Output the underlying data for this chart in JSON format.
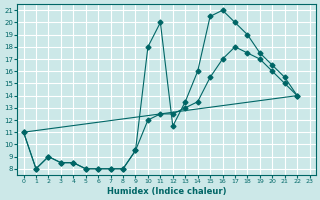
{
  "xlabel": "Humidex (Indice chaleur)",
  "bg_color": "#cce8e8",
  "grid_color": "#ffffff",
  "line_color": "#006666",
  "xlim": [
    -0.5,
    23.5
  ],
  "ylim": [
    7.5,
    21.5
  ],
  "xticks": [
    0,
    1,
    2,
    3,
    4,
    5,
    6,
    7,
    8,
    9,
    10,
    11,
    12,
    13,
    14,
    15,
    16,
    17,
    18,
    19,
    20,
    21,
    22,
    23
  ],
  "yticks": [
    8,
    9,
    10,
    11,
    12,
    13,
    14,
    15,
    16,
    17,
    18,
    19,
    20,
    21
  ],
  "line1_x": [
    0,
    1,
    2,
    3,
    4,
    5,
    6,
    7,
    8,
    9,
    10,
    11,
    12,
    13,
    14,
    15,
    16,
    17,
    18,
    19,
    20,
    21,
    22
  ],
  "line1_y": [
    11,
    8,
    9,
    8.5,
    8.5,
    8,
    8,
    8,
    8,
    9.5,
    18,
    20,
    11.5,
    13.5,
    16,
    20.5,
    21,
    20,
    19,
    17.5,
    16.5,
    15.5,
    14
  ],
  "line2_x": [
    0,
    1,
    2,
    3,
    4,
    5,
    6,
    7,
    8,
    9,
    10,
    11,
    12,
    13,
    14,
    15,
    16,
    17,
    18,
    19,
    20,
    21,
    22
  ],
  "line2_y": [
    11,
    8,
    9,
    8.5,
    8.5,
    8,
    8,
    8,
    8,
    9.5,
    12,
    12.5,
    12.5,
    13,
    13.5,
    15.5,
    17,
    18,
    17.5,
    17,
    16,
    15,
    14
  ],
  "line3_x": [
    0,
    22
  ],
  "line3_y": [
    11,
    14
  ],
  "marker_size": 2.5
}
